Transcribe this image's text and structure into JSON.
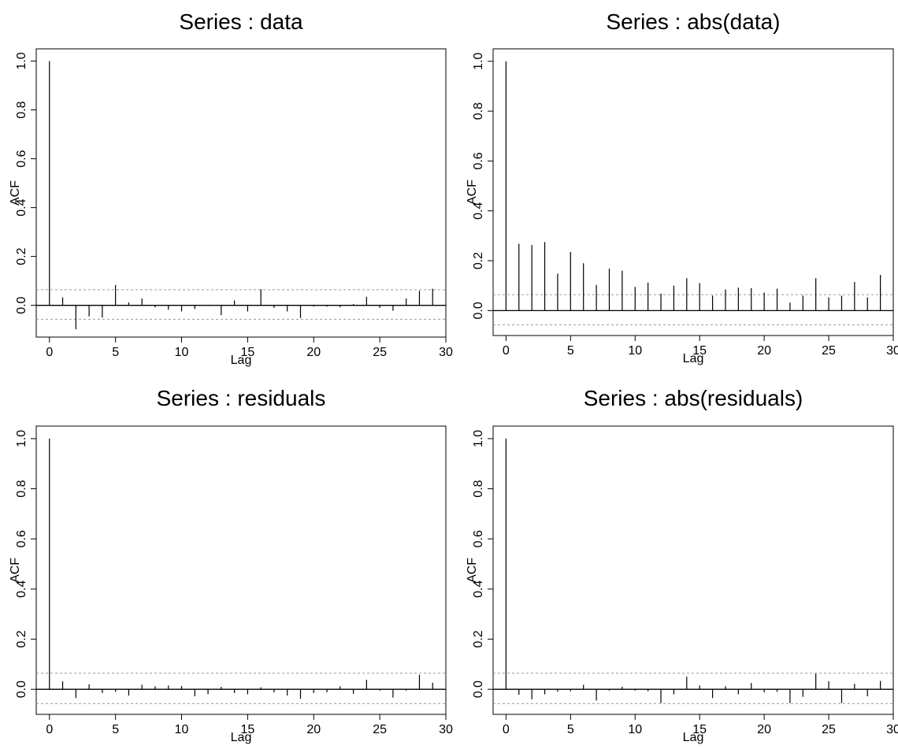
{
  "chart_data": [
    {
      "type": "bar",
      "title": "Series : data",
      "xlabel": "Lag",
      "ylabel": "ACF",
      "xlim": [
        -1,
        30
      ],
      "ylim": [
        -0.13,
        1.05
      ],
      "xticks": [
        0,
        5,
        10,
        15,
        20,
        25,
        30
      ],
      "yticks": [
        0.0,
        0.2,
        0.4,
        0.6,
        0.8,
        1.0
      ],
      "ytick_labels": [
        "0.0",
        "0.2",
        "0.4",
        "0.6",
        "0.8",
        "1.0"
      ],
      "confidence_band": [
        -0.057,
        0.064
      ],
      "lags": [
        0,
        1,
        2,
        3,
        4,
        5,
        6,
        7,
        8,
        9,
        10,
        11,
        12,
        13,
        14,
        15,
        16,
        17,
        18,
        19,
        20,
        21,
        22,
        23,
        24,
        25,
        26,
        27,
        28,
        29
      ],
      "acf": [
        1.0,
        0.033,
        -0.098,
        -0.045,
        -0.05,
        0.083,
        0.012,
        0.028,
        -0.008,
        -0.018,
        -0.025,
        -0.015,
        0.003,
        -0.04,
        0.02,
        -0.025,
        0.066,
        -0.01,
        -0.025,
        -0.052,
        -0.005,
        -0.005,
        -0.008,
        0.005,
        0.035,
        -0.01,
        -0.022,
        0.028,
        0.06,
        0.068
      ]
    },
    {
      "type": "bar",
      "title": "Series : abs(data)",
      "xlabel": "Lag",
      "ylabel": "ACF",
      "xlim": [
        -1,
        30
      ],
      "ylim": [
        -0.1,
        1.05
      ],
      "xticks": [
        0,
        5,
        10,
        15,
        20,
        25,
        30
      ],
      "yticks": [
        0.0,
        0.2,
        0.4,
        0.6,
        0.8,
        1.0
      ],
      "ytick_labels": [
        "0.0",
        "0.2",
        "0.4",
        "0.6",
        "0.8",
        "1.0"
      ],
      "confidence_band": [
        -0.057,
        0.064
      ],
      "lags": [
        0,
        1,
        2,
        3,
        4,
        5,
        6,
        7,
        8,
        9,
        10,
        11,
        12,
        13,
        14,
        15,
        16,
        17,
        18,
        19,
        20,
        21,
        22,
        23,
        24,
        25,
        26,
        27,
        28,
        29
      ],
      "acf": [
        1.0,
        0.268,
        0.263,
        0.275,
        0.148,
        0.235,
        0.19,
        0.103,
        0.168,
        0.16,
        0.095,
        0.112,
        0.068,
        0.1,
        0.13,
        0.11,
        0.06,
        0.085,
        0.092,
        0.09,
        0.072,
        0.088,
        0.032,
        0.06,
        0.13,
        0.053,
        0.06,
        0.115,
        0.053,
        0.143
      ]
    },
    {
      "type": "bar",
      "title": "Series : residuals",
      "xlabel": "Lag",
      "ylabel": "ACF",
      "xlim": [
        -1,
        30
      ],
      "ylim": [
        -0.1,
        1.05
      ],
      "xticks": [
        0,
        5,
        10,
        15,
        20,
        25,
        30
      ],
      "yticks": [
        0.0,
        0.2,
        0.4,
        0.6,
        0.8,
        1.0
      ],
      "ytick_labels": [
        "0.0",
        "0.2",
        "0.4",
        "0.6",
        "0.8",
        "1.0"
      ],
      "confidence_band": [
        -0.057,
        0.064
      ],
      "lags": [
        0,
        1,
        2,
        3,
        4,
        5,
        6,
        7,
        8,
        9,
        10,
        11,
        12,
        13,
        14,
        15,
        16,
        17,
        18,
        19,
        20,
        21,
        22,
        23,
        24,
        25,
        26,
        27,
        28,
        29
      ],
      "acf": [
        1.0,
        0.032,
        -0.035,
        0.02,
        -0.015,
        -0.01,
        -0.025,
        0.018,
        0.012,
        0.015,
        0.013,
        -0.028,
        -0.02,
        0.01,
        -0.015,
        -0.02,
        0.008,
        -0.012,
        -0.025,
        -0.038,
        -0.015,
        -0.012,
        0.012,
        -0.018,
        0.038,
        -0.005,
        -0.033,
        -0.005,
        0.058,
        0.026
      ]
    },
    {
      "type": "bar",
      "title": "Series : abs(residuals)",
      "xlabel": "Lag",
      "ylabel": "ACF",
      "xlim": [
        -1,
        30
      ],
      "ylim": [
        -0.1,
        1.05
      ],
      "xticks": [
        0,
        5,
        10,
        15,
        20,
        25,
        30
      ],
      "yticks": [
        0.0,
        0.2,
        0.4,
        0.6,
        0.8,
        1.0
      ],
      "ytick_labels": [
        "0.0",
        "0.2",
        "0.4",
        "0.6",
        "0.8",
        "1.0"
      ],
      "confidence_band": [
        -0.057,
        0.064
      ],
      "lags": [
        0,
        1,
        2,
        3,
        4,
        5,
        6,
        7,
        8,
        9,
        10,
        11,
        12,
        13,
        14,
        15,
        16,
        17,
        18,
        19,
        20,
        21,
        22,
        23,
        24,
        25,
        26,
        27,
        28,
        29
      ],
      "acf": [
        1.0,
        -0.022,
        -0.04,
        -0.02,
        -0.01,
        -0.008,
        0.018,
        -0.045,
        -0.005,
        0.01,
        -0.005,
        -0.008,
        -0.055,
        -0.02,
        0.05,
        0.015,
        -0.035,
        0.012,
        -0.02,
        0.025,
        -0.012,
        -0.01,
        -0.055,
        -0.03,
        0.062,
        0.032,
        -0.055,
        0.022,
        -0.028,
        0.033
      ]
    }
  ]
}
